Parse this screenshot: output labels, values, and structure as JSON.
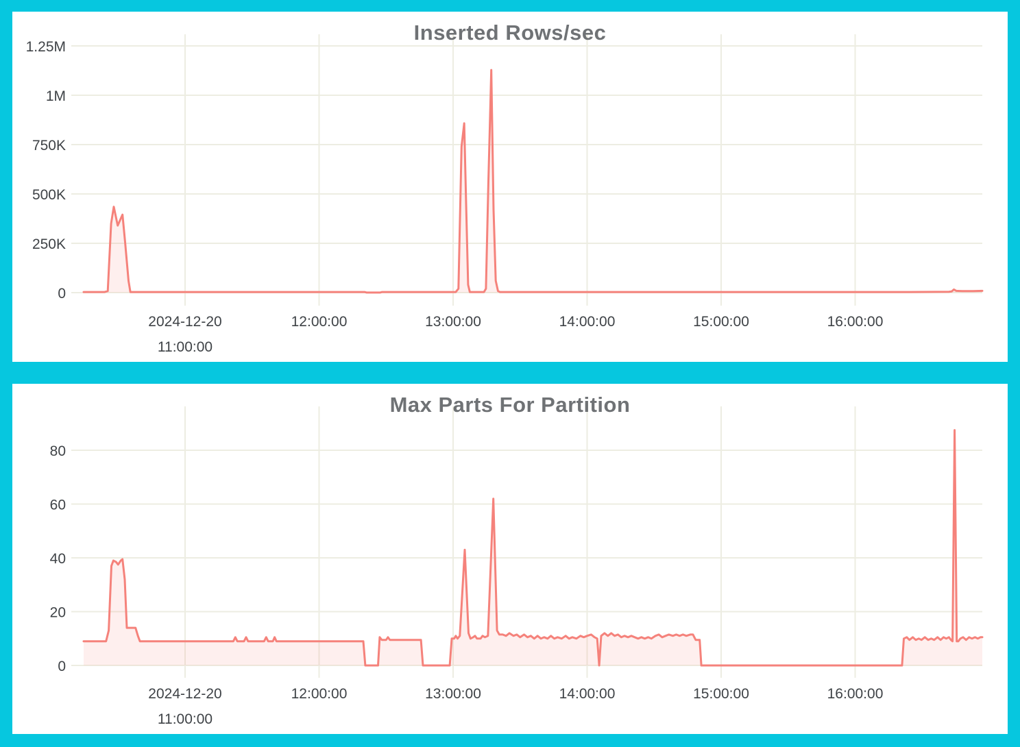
{
  "page": {
    "background_color": "#06C7DF",
    "panel_color": "#FFFFFF",
    "grid_color": "#EDEDE2",
    "text_color": "#3F4347",
    "title_color": "#6F7275",
    "accent_line_color": "#F5827B",
    "accent_fill_color": "rgba(244,130,124,0.13)"
  },
  "chart_data": [
    {
      "type": "area",
      "title": "Inserted Rows/sec",
      "legend": null,
      "grid": true,
      "line_color": "#F5827B",
      "fill_color": "rgba(244,130,124,0.13)",
      "x_axis": {
        "unit": "time of day, 2024-12-20 (decimal hours)",
        "range_hours": [
          10.243,
          16.949
        ],
        "ticks": [
          {
            "hour": 11,
            "lines": [
              "2024-12-20",
              "11:00:00"
            ]
          },
          {
            "hour": 12,
            "lines": [
              "12:00:00"
            ]
          },
          {
            "hour": 13,
            "lines": [
              "13:00:00"
            ]
          },
          {
            "hour": 14,
            "lines": [
              "14:00:00"
            ]
          },
          {
            "hour": 15,
            "lines": [
              "15:00:00"
            ]
          },
          {
            "hour": 16,
            "lines": [
              "16:00:00"
            ]
          }
        ]
      },
      "y_axis": {
        "unit": "rows per second",
        "min": 0,
        "max": 1250000,
        "ticks": [
          {
            "value": 0,
            "label": "0"
          },
          {
            "value": 250000,
            "label": "250K"
          },
          {
            "value": 500000,
            "label": "500K"
          },
          {
            "value": 750000,
            "label": "750K"
          },
          {
            "value": 1000000,
            "label": "1M"
          },
          {
            "value": 1250000,
            "label": "1.25M"
          }
        ]
      },
      "series": [
        {
          "name": "inserted rows/sec",
          "points_hour_value": [
            [
              10.243,
              3000
            ],
            [
              10.4,
              3000
            ],
            [
              10.423,
              8000
            ],
            [
              10.448,
              350000
            ],
            [
              10.468,
              435000
            ],
            [
              10.497,
              340000
            ],
            [
              10.533,
              395000
            ],
            [
              10.552,
              260000
            ],
            [
              10.578,
              60000
            ],
            [
              10.592,
              3000
            ],
            [
              10.8,
              3000
            ],
            [
              11.2,
              3000
            ],
            [
              11.6,
              3000
            ],
            [
              12.0,
              3000
            ],
            [
              12.34,
              3000
            ],
            [
              12.355,
              500
            ],
            [
              12.455,
              500
            ],
            [
              12.47,
              3000
            ],
            [
              12.8,
              3000
            ],
            [
              13.02,
              3000
            ],
            [
              13.04,
              20000
            ],
            [
              13.063,
              740000
            ],
            [
              13.083,
              858000
            ],
            [
              13.098,
              420000
            ],
            [
              13.112,
              40000
            ],
            [
              13.125,
              3000
            ],
            [
              13.23,
              3000
            ],
            [
              13.245,
              20000
            ],
            [
              13.263,
              550000
            ],
            [
              13.285,
              1128000
            ],
            [
              13.302,
              420000
            ],
            [
              13.318,
              60000
            ],
            [
              13.335,
              8000
            ],
            [
              13.35,
              3000
            ],
            [
              13.6,
              3000
            ],
            [
              14.0,
              3000
            ],
            [
              14.5,
              3000
            ],
            [
              15.0,
              3000
            ],
            [
              15.5,
              3000
            ],
            [
              16.0,
              3000
            ],
            [
              16.4,
              3000
            ],
            [
              16.7,
              4000
            ],
            [
              16.72,
              6000
            ],
            [
              16.737,
              16000
            ],
            [
              16.755,
              9000
            ],
            [
              16.8,
              8000
            ],
            [
              16.88,
              8000
            ],
            [
              16.949,
              9000
            ]
          ]
        }
      ]
    },
    {
      "type": "area",
      "title": "Max Parts For Partition",
      "legend": null,
      "grid": true,
      "line_color": "#F5827B",
      "fill_color": "rgba(244,130,124,0.13)",
      "x_axis": {
        "unit": "time of day, 2024-12-20 (decimal hours)",
        "range_hours": [
          10.243,
          16.949
        ],
        "ticks": [
          {
            "hour": 11,
            "lines": [
              "2024-12-20",
              "11:00:00"
            ]
          },
          {
            "hour": 12,
            "lines": [
              "12:00:00"
            ]
          },
          {
            "hour": 13,
            "lines": [
              "13:00:00"
            ]
          },
          {
            "hour": 14,
            "lines": [
              "14:00:00"
            ]
          },
          {
            "hour": 15,
            "lines": [
              "15:00:00"
            ]
          },
          {
            "hour": 16,
            "lines": [
              "16:00:00"
            ]
          }
        ]
      },
      "y_axis": {
        "unit": "parts",
        "min": 0,
        "max": 92,
        "ticks": [
          {
            "value": 0,
            "label": "0"
          },
          {
            "value": 20,
            "label": "20"
          },
          {
            "value": 40,
            "label": "40"
          },
          {
            "value": 60,
            "label": "60"
          },
          {
            "value": 80,
            "label": "80"
          }
        ]
      },
      "series": [
        {
          "name": "max parts for partition",
          "points_hour_value": [
            [
              10.243,
              9
            ],
            [
              10.35,
              9
            ],
            [
              10.41,
              9
            ],
            [
              10.43,
              13
            ],
            [
              10.45,
              37
            ],
            [
              10.465,
              39
            ],
            [
              10.485,
              38.5
            ],
            [
              10.5,
              37.5
            ],
            [
              10.52,
              39
            ],
            [
              10.533,
              39.5
            ],
            [
              10.55,
              32
            ],
            [
              10.565,
              14
            ],
            [
              10.63,
              14
            ],
            [
              10.648,
              11
            ],
            [
              10.663,
              9
            ],
            [
              10.8,
              9
            ],
            [
              11.0,
              9
            ],
            [
              11.2,
              9
            ],
            [
              11.36,
              9
            ],
            [
              11.375,
              10.5
            ],
            [
              11.39,
              9
            ],
            [
              11.44,
              9
            ],
            [
              11.455,
              10.5
            ],
            [
              11.47,
              9
            ],
            [
              11.59,
              9
            ],
            [
              11.605,
              10.5
            ],
            [
              11.62,
              9
            ],
            [
              11.655,
              9
            ],
            [
              11.668,
              10.5
            ],
            [
              11.682,
              9
            ],
            [
              11.9,
              9
            ],
            [
              12.1,
              9
            ],
            [
              12.33,
              9
            ],
            [
              12.345,
              0
            ],
            [
              12.44,
              0
            ],
            [
              12.452,
              10.5
            ],
            [
              12.468,
              9.5
            ],
            [
              12.5,
              9.5
            ],
            [
              12.514,
              10.5
            ],
            [
              12.528,
              9.5
            ],
            [
              12.65,
              9.5
            ],
            [
              12.76,
              9.5
            ],
            [
              12.775,
              0
            ],
            [
              12.975,
              0
            ],
            [
              12.99,
              10
            ],
            [
              13.008,
              10
            ],
            [
              13.02,
              11
            ],
            [
              13.033,
              10
            ],
            [
              13.05,
              11
            ],
            [
              13.087,
              43
            ],
            [
              13.115,
              12
            ],
            [
              13.13,
              10
            ],
            [
              13.15,
              10.5
            ],
            [
              13.163,
              11
            ],
            [
              13.178,
              10
            ],
            [
              13.205,
              10
            ],
            [
              13.22,
              11
            ],
            [
              13.238,
              10.5
            ],
            [
              13.26,
              11
            ],
            [
              13.3,
              62
            ],
            [
              13.328,
              13
            ],
            [
              13.345,
              11.5
            ],
            [
              13.37,
              11.5
            ],
            [
              13.395,
              11
            ],
            [
              13.42,
              12
            ],
            [
              13.45,
              11
            ],
            [
              13.475,
              11.5
            ],
            [
              13.5,
              10.5
            ],
            [
              13.53,
              11.5
            ],
            [
              13.555,
              10.5
            ],
            [
              13.58,
              11
            ],
            [
              13.605,
              10
            ],
            [
              13.63,
              11
            ],
            [
              13.655,
              10
            ],
            [
              13.68,
              10.5
            ],
            [
              13.705,
              10
            ],
            [
              13.73,
              11
            ],
            [
              13.755,
              10
            ],
            [
              13.78,
              10.5
            ],
            [
              13.81,
              10
            ],
            [
              13.84,
              11
            ],
            [
              13.865,
              10
            ],
            [
              13.89,
              10.5
            ],
            [
              13.92,
              10
            ],
            [
              13.95,
              11
            ],
            [
              13.975,
              10.5
            ],
            [
              14.0,
              11
            ],
            [
              14.03,
              11.5
            ],
            [
              14.055,
              10.5
            ],
            [
              14.075,
              10
            ],
            [
              14.09,
              0
            ],
            [
              14.105,
              11
            ],
            [
              14.13,
              12
            ],
            [
              14.155,
              11
            ],
            [
              14.18,
              12
            ],
            [
              14.205,
              11
            ],
            [
              14.23,
              11.5
            ],
            [
              14.255,
              10.5
            ],
            [
              14.28,
              11
            ],
            [
              14.305,
              10.5
            ],
            [
              14.33,
              11
            ],
            [
              14.355,
              10.5
            ],
            [
              14.38,
              10
            ],
            [
              14.405,
              10.5
            ],
            [
              14.43,
              10
            ],
            [
              14.455,
              10.5
            ],
            [
              14.48,
              10
            ],
            [
              14.51,
              11
            ],
            [
              14.535,
              11.5
            ],
            [
              14.56,
              10.5
            ],
            [
              14.585,
              11
            ],
            [
              14.61,
              11.5
            ],
            [
              14.64,
              11
            ],
            [
              14.665,
              11.5
            ],
            [
              14.69,
              11
            ],
            [
              14.715,
              11.5
            ],
            [
              14.74,
              11
            ],
            [
              14.77,
              11.5
            ],
            [
              14.79,
              11.5
            ],
            [
              14.81,
              9.5
            ],
            [
              14.84,
              9.5
            ],
            [
              14.852,
              0
            ],
            [
              15.2,
              0
            ],
            [
              15.6,
              0
            ],
            [
              16.0,
              0
            ],
            [
              16.35,
              0
            ],
            [
              16.363,
              10
            ],
            [
              16.385,
              10.5
            ],
            [
              16.405,
              9.5
            ],
            [
              16.43,
              10.5
            ],
            [
              16.452,
              9.5
            ],
            [
              16.475,
              10
            ],
            [
              16.495,
              9.5
            ],
            [
              16.52,
              10.5
            ],
            [
              16.545,
              9.5
            ],
            [
              16.568,
              10
            ],
            [
              16.59,
              9.5
            ],
            [
              16.615,
              10.5
            ],
            [
              16.638,
              9.5
            ],
            [
              16.66,
              10.5
            ],
            [
              16.68,
              10
            ],
            [
              16.7,
              10.5
            ],
            [
              16.715,
              9.5
            ],
            [
              16.727,
              9
            ],
            [
              16.742,
              87.5
            ],
            [
              16.758,
              9
            ],
            [
              16.77,
              9
            ],
            [
              16.785,
              10
            ],
            [
              16.805,
              10.5
            ],
            [
              16.828,
              9.5
            ],
            [
              16.85,
              10.5
            ],
            [
              16.872,
              10
            ],
            [
              16.895,
              10.5
            ],
            [
              16.915,
              10
            ],
            [
              16.935,
              10.5
            ],
            [
              16.949,
              10.5
            ]
          ]
        }
      ]
    }
  ]
}
